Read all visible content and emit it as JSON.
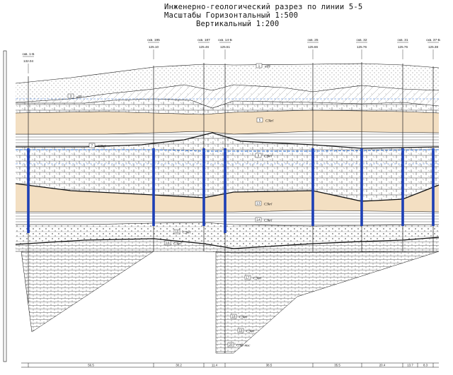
{
  "title": {
    "line1": "Инженерно-геологический разрез по линии 5-5",
    "line2": "Масштабы Горизонтальный 1:500",
    "line3": "Вертикальный 1:200"
  },
  "colors": {
    "line": "#111111",
    "sand": "#f3dfc2",
    "water_line": "#2a6fd6",
    "borehole_blue": "#1d3fb5",
    "hatch": "#333333"
  },
  "boreholes": [
    {
      "id": "скв. 1-Б",
      "elev": "132.04"
    },
    {
      "id": "скв. 195",
      "elev": "125.10"
    },
    {
      "id": "скв. 187",
      "elev": "125.46"
    },
    {
      "id": "скв. 14-Б",
      "elev": "125.51"
    },
    {
      "id": "скв. 25",
      "elev": "125.66"
    },
    {
      "id": "скв. 32",
      "elev": "125.76"
    },
    {
      "id": "скв. 31",
      "elev": "125.76"
    },
    {
      "id": "скв. 37-Б",
      "elev": "125.38"
    }
  ],
  "layers": [
    {
      "tag": "1",
      "index": "aIII"
    },
    {
      "tag": "3",
      "index": "aIII"
    },
    {
      "tag": "5",
      "index": "C3krl"
    },
    {
      "tag": "7",
      "index": "C3krl"
    },
    {
      "tag": "9",
      "index": "C3krl"
    },
    {
      "tag": "13",
      "index": "C3krl"
    },
    {
      "tag": "14",
      "index": "C3krl"
    },
    {
      "tag": "15",
      "index": "C3krl"
    },
    {
      "tag": "16",
      "index": "C3krl"
    },
    {
      "tag": "17",
      "index": "C3krl"
    },
    {
      "tag": "18",
      "index": "C3krl"
    },
    {
      "tag": "19",
      "index": "C3krl"
    },
    {
      "tag": "20",
      "index": "C3kr-msc"
    }
  ],
  "distances": [
    "56.5",
    "30.2",
    "11.4",
    "38.5",
    "35.5",
    "20.4",
    "13.7",
    "8.3"
  ]
}
